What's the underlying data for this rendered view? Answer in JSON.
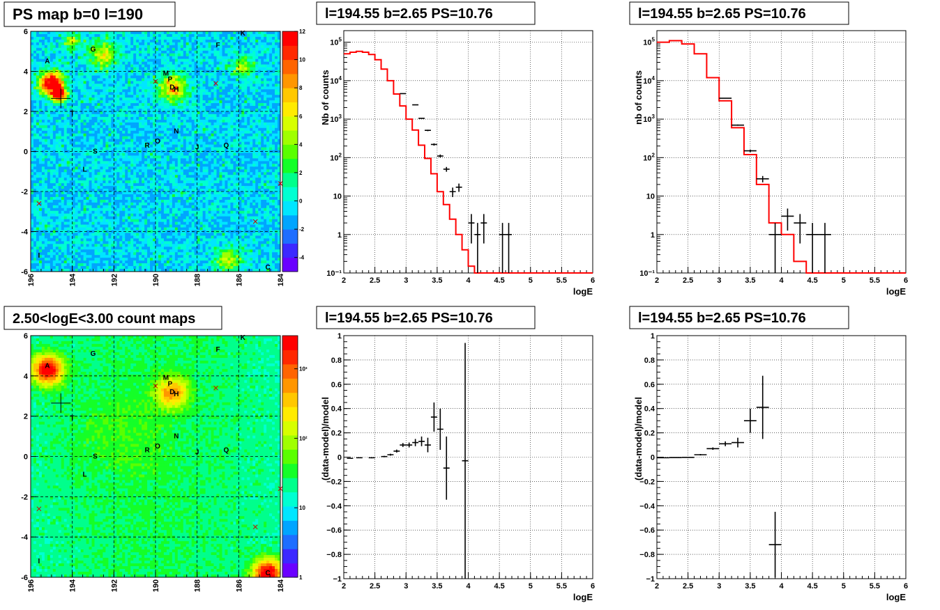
{
  "colors": {
    "model_line": "#ff0000",
    "data_marks": "#000000",
    "grid": "#000000"
  },
  "panels": {
    "ps_map": {
      "title": "PS map b=0 l=190",
      "x_ticks": [
        "196",
        "194",
        "192",
        "190",
        "188",
        "186",
        "184"
      ],
      "y_ticks": [
        "6",
        "4",
        "2",
        "0",
        "-2",
        "-4",
        "-6"
      ],
      "colorbar_ticks": [
        "12",
        "10",
        "8",
        "6",
        "4",
        "2",
        "0",
        "-2",
        "-4"
      ],
      "colorbar_range": [
        -5,
        12
      ]
    },
    "count_map": {
      "title": "2.50<logE<3.00 count maps",
      "x_ticks": [
        "196",
        "194",
        "192",
        "190",
        "188",
        "186",
        "184"
      ],
      "y_ticks": [
        "6",
        "4",
        "2",
        "0",
        "-2",
        "-4",
        "-6"
      ],
      "colorbar_ticks": [
        "10³",
        "10²",
        "10",
        "1"
      ]
    },
    "spec1": {
      "title": "l=194.55 b=2.65 PS=10.76",
      "ylabel": "Nb of counts",
      "xlabel": "logE"
    },
    "spec2": {
      "title": "l=194.55 b=2.65 PS=10.76",
      "ylabel": "nb of counts",
      "xlabel": "logE"
    },
    "res1": {
      "title": "l=194.55 b=2.65 PS=10.76",
      "ylabel": "(data-model)/model",
      "xlabel": "logE"
    },
    "res2": {
      "title": "l=194.55 b=2.65 PS=10.76",
      "ylabel": "(data-model)/model",
      "xlabel": "logE"
    }
  },
  "chart_data": [
    {
      "type": "heatmap",
      "title": "PS map b=0 l=190",
      "xlim": [
        196,
        184
      ],
      "ylim": [
        -6,
        6
      ],
      "zlim": [
        -5,
        12
      ],
      "sources": [
        {
          "label": "A",
          "l": 195.2,
          "b": 4.4
        },
        {
          "label": "G",
          "l": 193.0,
          "b": 5.0
        },
        {
          "label": "F",
          "l": 187.0,
          "b": 5.2
        },
        {
          "label": "K",
          "l": 185.8,
          "b": 5.8
        },
        {
          "label": "M",
          "l": 189.5,
          "b": 3.8
        },
        {
          "label": "P",
          "l": 189.3,
          "b": 3.5
        },
        {
          "label": "D",
          "l": 189.2,
          "b": 3.1
        },
        {
          "label": "H",
          "l": 189.0,
          "b": 3.0
        },
        {
          "label": "T",
          "l": 194.0,
          "b": 1.8
        },
        {
          "label": "N",
          "l": 189.0,
          "b": 0.9
        },
        {
          "label": "O",
          "l": 189.9,
          "b": 0.4
        },
        {
          "label": "R",
          "l": 190.4,
          "b": 0.2
        },
        {
          "label": "J",
          "l": 188.0,
          "b": 0.1
        },
        {
          "label": "Q",
          "l": 186.6,
          "b": 0.2
        },
        {
          "label": "S",
          "l": 192.9,
          "b": -0.1
        },
        {
          "label": "L",
          "l": 193.4,
          "b": -1.0
        },
        {
          "label": "I",
          "l": 195.6,
          "b": -5.3
        },
        {
          "label": "C",
          "l": 184.6,
          "b": -5.9
        }
      ],
      "markers": {
        "cross": [
          {
            "l": 194.55,
            "b": 2.65
          }
        ],
        "x": [
          {
            "l": 190.0,
            "b": 3.5
          },
          {
            "l": 187.1,
            "b": 3.4
          },
          {
            "l": 195.6,
            "b": -2.6
          },
          {
            "l": 185.2,
            "b": -3.5
          },
          {
            "l": 184.0,
            "b": -1.6
          }
        ]
      }
    },
    {
      "type": "heatmap",
      "title": "2.50<logE<3.00 count maps",
      "xlim": [
        196,
        184
      ],
      "ylim": [
        -6,
        6
      ],
      "zscale": "log",
      "zlim": [
        1,
        3000
      ]
    },
    {
      "type": "line",
      "title": "l=194.55 b=2.65 PS=10.76",
      "xlabel": "logE",
      "ylabel": "Nb of counts",
      "xlim": [
        2,
        6
      ],
      "ylim": [
        0.1,
        200000
      ],
      "yscale": "log",
      "series": [
        {
          "name": "model",
          "step": true,
          "bin_width": 0.1,
          "x": [
            2.0,
            2.1,
            2.2,
            2.3,
            2.4,
            2.5,
            2.6,
            2.7,
            2.8,
            2.9,
            3.0,
            3.1,
            3.2,
            3.3,
            3.4,
            3.5,
            3.6,
            3.7,
            3.8,
            3.9,
            4.0,
            4.1,
            4.2,
            4.3,
            4.4,
            4.5,
            4.6,
            4.7,
            4.8,
            4.9,
            5.0,
            5.1,
            5.2,
            5.3,
            5.4,
            5.5,
            5.6,
            5.7,
            5.8,
            5.9
          ],
          "y": [
            50000,
            55000,
            58000,
            55000,
            48000,
            35000,
            20000,
            10000,
            4500,
            2200,
            1000,
            520,
            210,
            95,
            38,
            13,
            6,
            2.5,
            1,
            0.4,
            0.15,
            0.1,
            0.1,
            0.1,
            0.1,
            0.1,
            0.1,
            0.1,
            0.1,
            0.1,
            0.1,
            0.1,
            0.1,
            0.1,
            0.1,
            0.1,
            0.1,
            0.1,
            0.1,
            0.1
          ]
        },
        {
          "name": "data",
          "x": [
            2.95,
            3.15,
            3.25,
            3.35,
            3.45,
            3.55,
            3.65,
            3.75,
            3.85,
            4.05,
            4.15,
            4.25,
            4.55,
            4.65
          ],
          "y": [
            4600,
            2350,
            1050,
            510,
            220,
            110,
            50,
            13,
            17,
            2,
            1,
            2,
            1,
            1
          ]
        }
      ]
    },
    {
      "type": "line",
      "title": "l=194.55 b=2.65 PS=10.76",
      "xlabel": "logE",
      "ylabel": "nb of counts",
      "xlim": [
        2,
        6
      ],
      "ylim": [
        0.1,
        200000
      ],
      "yscale": "log",
      "series": [
        {
          "name": "model",
          "step": true,
          "bin_width": 0.2,
          "x": [
            2.0,
            2.2,
            2.4,
            2.6,
            2.8,
            3.0,
            3.2,
            3.4,
            3.6,
            3.8,
            4.0,
            4.2,
            4.4,
            4.6,
            4.8,
            5.0,
            5.2,
            5.4,
            5.6,
            5.8
          ],
          "y": [
            100000,
            110000,
            90000,
            50000,
            12000,
            3000,
            600,
            120,
            20,
            2,
            1,
            0.2,
            0.1,
            0.1,
            0.1,
            0.1,
            0.1,
            0.1,
            0.1,
            0.1
          ]
        },
        {
          "name": "data",
          "x": [
            3.1,
            3.3,
            3.5,
            3.7,
            3.9,
            4.1,
            4.3,
            4.5,
            4.7
          ],
          "y": [
            3500,
            700,
            150,
            28,
            1,
            3,
            2,
            1,
            1
          ]
        }
      ]
    },
    {
      "type": "scatter",
      "title": "l=194.55 b=2.65 PS=10.76",
      "xlabel": "logE",
      "ylabel": "(data-model)/model",
      "xlim": [
        2,
        6
      ],
      "ylim": [
        -1,
        1
      ],
      "points": [
        {
          "x": 2.1,
          "y": -0.01,
          "err": 0.004
        },
        {
          "x": 2.25,
          "y": -0.005,
          "err": 0.004
        },
        {
          "x": 2.45,
          "y": -0.005,
          "err": 0.005
        },
        {
          "x": 2.65,
          "y": 0.005,
          "err": 0.006
        },
        {
          "x": 2.75,
          "y": 0.02,
          "err": 0.008
        },
        {
          "x": 2.85,
          "y": 0.05,
          "err": 0.012
        },
        {
          "x": 2.95,
          "y": 0.1,
          "err": 0.016
        },
        {
          "x": 3.05,
          "y": 0.1,
          "err": 0.02
        },
        {
          "x": 3.15,
          "y": 0.12,
          "err": 0.03
        },
        {
          "x": 3.25,
          "y": 0.13,
          "err": 0.04
        },
        {
          "x": 3.35,
          "y": 0.1,
          "err": 0.06
        },
        {
          "x": 3.45,
          "y": 0.33,
          "err": 0.12
        },
        {
          "x": 3.55,
          "y": 0.23,
          "err": 0.17
        },
        {
          "x": 3.65,
          "y": -0.09,
          "err": 0.26
        },
        {
          "x": 3.95,
          "y": -0.03,
          "err": 0.97
        }
      ]
    },
    {
      "type": "scatter",
      "title": "l=194.55 b=2.65 PS=10.76",
      "xlabel": "logE",
      "ylabel": "(data-model)/model",
      "xlim": [
        2,
        6
      ],
      "ylim": [
        -1,
        1
      ],
      "points": [
        {
          "x": 2.1,
          "y": -0.005,
          "err": 0.004
        },
        {
          "x": 2.3,
          "y": -0.003,
          "err": 0.004
        },
        {
          "x": 2.5,
          "y": -0.002,
          "err": 0.004
        },
        {
          "x": 2.7,
          "y": 0.02,
          "err": 0.006
        },
        {
          "x": 2.9,
          "y": 0.07,
          "err": 0.01
        },
        {
          "x": 3.1,
          "y": 0.11,
          "err": 0.02
        },
        {
          "x": 3.3,
          "y": 0.12,
          "err": 0.04
        },
        {
          "x": 3.5,
          "y": 0.3,
          "err": 0.1
        },
        {
          "x": 3.7,
          "y": 0.41,
          "err": 0.26
        },
        {
          "x": 3.9,
          "y": -0.72,
          "err": 0.27
        }
      ]
    }
  ]
}
